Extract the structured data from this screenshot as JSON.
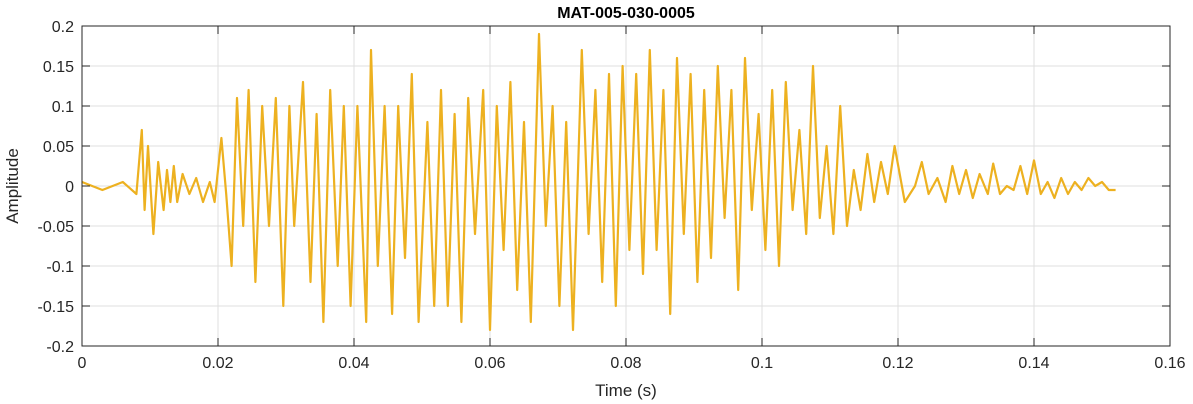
{
  "chart_data": {
    "type": "line",
    "title": "MAT-005-030-0005",
    "xlabel": "Time (s)",
    "ylabel": "Amplitude",
    "xlim": [
      0,
      0.16
    ],
    "ylim": [
      -0.2,
      0.2
    ],
    "xticks": [
      0,
      0.02,
      0.04,
      0.06,
      0.08,
      0.1,
      0.12,
      0.14,
      0.16
    ],
    "xtick_labels": [
      "0",
      "0.02",
      "0.04",
      "0.06",
      "0.08",
      "0.1",
      "0.12",
      "0.14",
      "0.16"
    ],
    "yticks": [
      -0.2,
      -0.15,
      -0.1,
      -0.05,
      0,
      0.05,
      0.1,
      0.15,
      0.2
    ],
    "ytick_labels": [
      "-0.2",
      "-0.15",
      "-0.1",
      "-0.05",
      "0",
      "0.05",
      "0.1",
      "0.15",
      "0.2"
    ],
    "grid": true,
    "line_color": "#EDB120",
    "series": [
      {
        "x": [
          0,
          0.003,
          0.006,
          0.008,
          0.0088,
          0.0092,
          0.0097,
          0.0105,
          0.0112,
          0.012,
          0.0125,
          0.013,
          0.0135,
          0.014,
          0.0148,
          0.0158,
          0.0168,
          0.0178,
          0.0188,
          0.0195,
          0.0205,
          0.0212,
          0.022,
          0.0228,
          0.0237,
          0.0245,
          0.0255,
          0.0265,
          0.0275,
          0.0285,
          0.0296,
          0.0305,
          0.0312,
          0.0325,
          0.0336,
          0.0345,
          0.0355,
          0.0365,
          0.0376,
          0.0385,
          0.0395,
          0.0405,
          0.0418,
          0.0425,
          0.0435,
          0.0445,
          0.0456,
          0.0465,
          0.0475,
          0.0485,
          0.0495,
          0.0508,
          0.0518,
          0.0528,
          0.0538,
          0.0548,
          0.0558,
          0.0568,
          0.0578,
          0.059,
          0.06,
          0.061,
          0.062,
          0.063,
          0.064,
          0.065,
          0.066,
          0.0672,
          0.0682,
          0.0692,
          0.0702,
          0.0712,
          0.0722,
          0.0735,
          0.0745,
          0.0755,
          0.0765,
          0.0775,
          0.0785,
          0.0795,
          0.0805,
          0.0815,
          0.0825,
          0.0835,
          0.0845,
          0.0855,
          0.0865,
          0.0875,
          0.0885,
          0.0895,
          0.0905,
          0.0915,
          0.0925,
          0.0935,
          0.0945,
          0.0955,
          0.0965,
          0.0975,
          0.0985,
          0.0995,
          0.1005,
          0.1015,
          0.1025,
          0.1035,
          0.1045,
          0.1055,
          0.1065,
          0.1075,
          0.1085,
          0.1095,
          0.1105,
          0.1115,
          0.1125,
          0.1135,
          0.1145,
          0.1155,
          0.1165,
          0.1175,
          0.1185,
          0.1195,
          0.121,
          0.1225,
          0.1235,
          0.1245,
          0.1258,
          0.127,
          0.128,
          0.129,
          0.13,
          0.131,
          0.132,
          0.1332,
          0.134,
          0.135,
          0.136,
          0.137,
          0.138,
          0.139,
          0.14,
          0.141,
          0.142,
          0.143,
          0.144,
          0.145,
          0.146,
          0.147,
          0.148,
          0.149,
          0.15,
          0.151,
          0.152
        ],
        "y": [
          0.005,
          -0.005,
          0.005,
          -0.01,
          0.07,
          -0.03,
          0.05,
          -0.06,
          0.03,
          -0.03,
          0.02,
          -0.02,
          0.025,
          -0.02,
          0.015,
          -0.01,
          0.01,
          -0.02,
          0.005,
          -0.02,
          0.06,
          -0.01,
          -0.1,
          0.11,
          -0.05,
          0.12,
          -0.12,
          0.1,
          -0.05,
          0.11,
          -0.15,
          0.1,
          -0.05,
          0.13,
          -0.12,
          0.09,
          -0.17,
          0.12,
          -0.1,
          0.1,
          -0.15,
          0.1,
          -0.17,
          0.17,
          -0.1,
          0.1,
          -0.16,
          0.1,
          -0.09,
          0.14,
          -0.17,
          0.08,
          -0.15,
          0.12,
          -0.15,
          0.09,
          -0.17,
          0.11,
          -0.06,
          0.12,
          -0.18,
          0.1,
          -0.08,
          0.13,
          -0.13,
          0.08,
          -0.17,
          0.19,
          -0.05,
          0.1,
          -0.15,
          0.08,
          -0.18,
          0.17,
          -0.06,
          0.12,
          -0.12,
          0.14,
          -0.15,
          0.15,
          -0.08,
          0.14,
          -0.11,
          0.17,
          -0.08,
          0.12,
          -0.16,
          0.16,
          -0.06,
          0.14,
          -0.12,
          0.12,
          -0.09,
          0.15,
          -0.04,
          0.12,
          -0.13,
          0.16,
          -0.03,
          0.09,
          -0.08,
          0.12,
          -0.1,
          0.13,
          -0.03,
          0.07,
          -0.06,
          0.15,
          -0.04,
          0.05,
          -0.06,
          0.1,
          -0.05,
          0.02,
          -0.03,
          0.04,
          -0.02,
          0.03,
          -0.01,
          0.05,
          -0.02,
          0.0,
          0.03,
          -0.01,
          0.01,
          -0.02,
          0.025,
          -0.01,
          0.02,
          -0.015,
          0.015,
          -0.01,
          0.028,
          -0.01,
          0.0,
          -0.005,
          0.025,
          -0.01,
          0.032,
          -0.01,
          0.005,
          -0.015,
          0.01,
          -0.01,
          0.005,
          -0.005,
          0.01,
          0.0,
          0.005,
          -0.005,
          -0.005
        ]
      }
    ]
  }
}
